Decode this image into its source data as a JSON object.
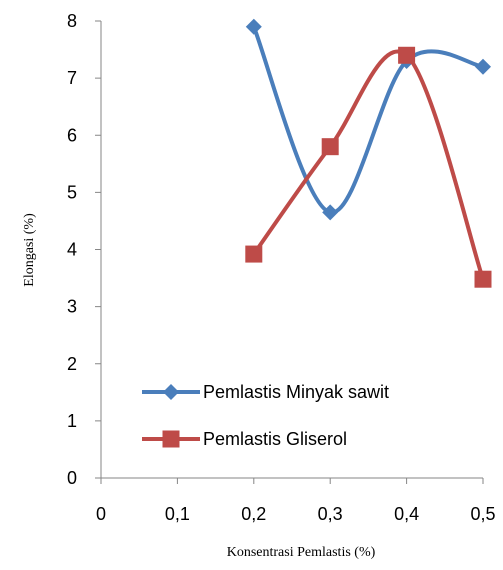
{
  "chart_data": {
    "type": "line",
    "xlabel": "Konsentrasi Pemlastis (%)",
    "ylabel": "Elongasi (%)",
    "xlim": [
      0,
      0.5
    ],
    "ylim": [
      0,
      8
    ],
    "x_ticks": [
      "0",
      "0,1",
      "0,2",
      "0,3",
      "0,4",
      "0,5"
    ],
    "y_ticks": [
      "0",
      "1",
      "2",
      "3",
      "4",
      "5",
      "6",
      "7",
      "8"
    ],
    "grid": false,
    "legend_position": "bottom-left",
    "series": [
      {
        "name": "Pemlastis Minyak sawit",
        "color": "#4a7ebb",
        "marker": "diamond",
        "smooth": true,
        "x": [
          0.2,
          0.3,
          0.4,
          0.5
        ],
        "y": [
          7.9,
          4.65,
          7.3,
          7.2
        ]
      },
      {
        "name": "Pemlastis Gliserol",
        "color": "#be4b48",
        "marker": "square",
        "smooth": true,
        "x": [
          0.2,
          0.3,
          0.4,
          0.5
        ],
        "y": [
          3.92,
          5.8,
          7.4,
          3.48
        ]
      }
    ]
  }
}
